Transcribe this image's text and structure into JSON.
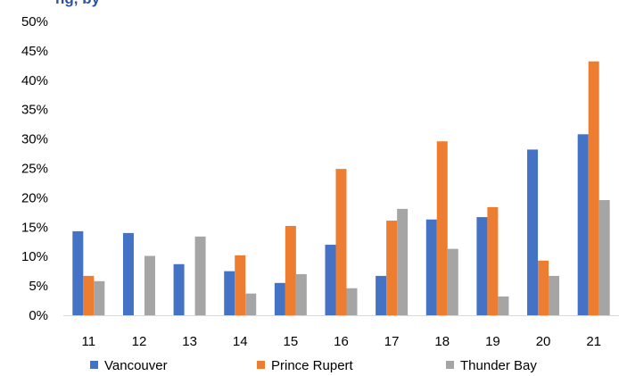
{
  "chart_data": {
    "type": "bar",
    "title_fragment": "ng, by",
    "categories": [
      "11",
      "12",
      "13",
      "14",
      "15",
      "16",
      "17",
      "18",
      "19",
      "20",
      "21"
    ],
    "ylim": [
      0,
      50
    ],
    "yticks": [
      "0%",
      "5%",
      "10%",
      "15%",
      "20%",
      "25%",
      "30%",
      "35%",
      "40%",
      "45%",
      "50%"
    ],
    "grid": false,
    "legend_position": "bottom",
    "series": [
      {
        "name": "Vancouver",
        "color": "#4472C4",
        "values": [
          14.3,
          14.0,
          8.7,
          7.5,
          5.5,
          12.0,
          6.7,
          16.3,
          16.7,
          28.2,
          30.8
        ]
      },
      {
        "name": "Prince Rupert",
        "color": "#ED7D31",
        "values": [
          6.7,
          0,
          0,
          10.2,
          15.2,
          24.9,
          16.1,
          29.6,
          18.4,
          9.3,
          43.2
        ]
      },
      {
        "name": "Thunder Bay",
        "color": "#A5A5A5",
        "values": [
          5.8,
          10.1,
          13.4,
          3.7,
          7.0,
          4.6,
          18.1,
          11.3,
          3.2,
          6.7,
          19.6
        ]
      }
    ]
  }
}
